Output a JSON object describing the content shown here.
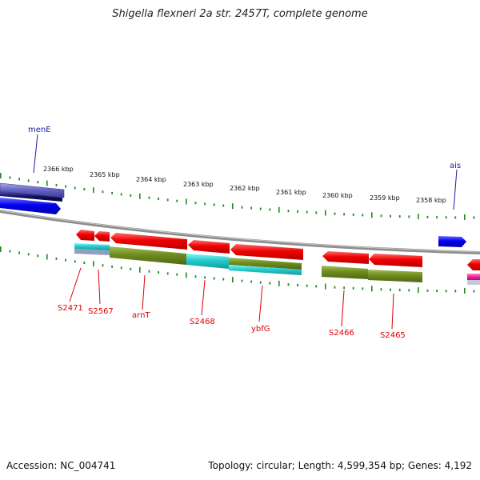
{
  "title": "Shigella flexneri 2a str. 2457T, complete genome",
  "footer": {
    "accession": "Accession: NC_004741",
    "summary": "Topology: circular; Length: 4,599,354 bp; Genes: 4,192"
  },
  "scale_labels": [
    "2366 kbp",
    "2365 kbp",
    "2364 kbp",
    "2363 kbp",
    "2362 kbp",
    "2361 kbp",
    "2360 kbp",
    "2359 kbp",
    "2358 kbp"
  ],
  "gene_labels": {
    "menE": "menE",
    "ais": "ais",
    "S2471": "S2471",
    "S2567": "S2567",
    "arnT": "arnT",
    "S2468": "S2468",
    "ybfG": "ybfG",
    "S2466": "S2466",
    "S2465": "S2465"
  },
  "colors": {
    "forward_gene": "#0000ee",
    "reverse_gene": "#ee0000",
    "backbone": "#888888",
    "tick": "#228822",
    "olive": "#6e8c20",
    "cyan": "#22cccc",
    "navy": "#111166",
    "magenta": "#ee2299"
  }
}
